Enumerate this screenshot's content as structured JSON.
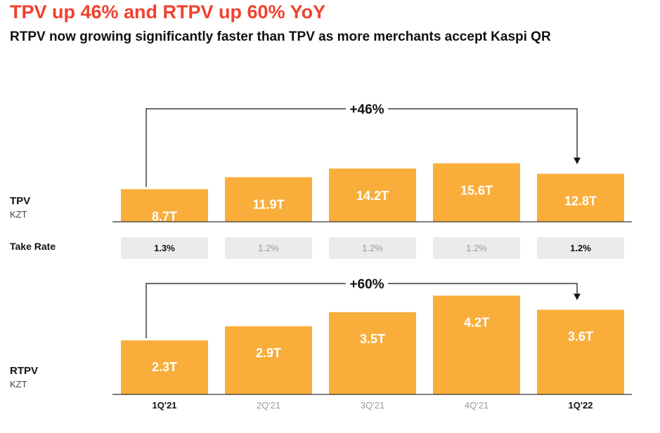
{
  "title": "TPV up 46% and RTPV up 60% YoY",
  "subtitle": "RTPV now growing significantly faster than TPV as more merchants accept Kaspi QR",
  "colors": {
    "title": "#f0412e",
    "bar": "#f9ae3b",
    "takerate_box": "#ebebeb",
    "highlight_text": "#111111",
    "muted_text": "#9a9a9a"
  },
  "tpv_row": {
    "label": "TPV",
    "unit": "KZT"
  },
  "rtpv_row": {
    "label": "RTPV",
    "unit": "KZT"
  },
  "take_rate_label": "Take Rate",
  "chart_data": [
    {
      "type": "bar",
      "categories": [
        "1Q'21",
        "2Q'21",
        "3Q'21",
        "4Q'21",
        "1Q'22"
      ],
      "values": [
        8.7,
        11.9,
        14.2,
        15.6,
        12.8
      ],
      "value_labels": [
        "8.7T",
        "11.9T",
        "14.2T",
        "15.6T",
        "12.8T"
      ],
      "ylabel": "TPV",
      "unit": "KZT",
      "annotation": "+46%",
      "annotation_from": "1Q'21",
      "annotation_to": "1Q'22"
    },
    {
      "type": "table",
      "label": "Take Rate",
      "categories": [
        "1Q'21",
        "2Q'21",
        "3Q'21",
        "4Q'21",
        "1Q'22"
      ],
      "values": [
        "1.3%",
        "1.2%",
        "1.2%",
        "1.2%",
        "1.2%"
      ],
      "highlighted": [
        true,
        false,
        false,
        false,
        true
      ]
    },
    {
      "type": "bar",
      "categories": [
        "1Q'21",
        "2Q'21",
        "3Q'21",
        "4Q'21",
        "1Q'22"
      ],
      "values": [
        2.3,
        2.9,
        3.5,
        4.2,
        3.6
      ],
      "value_labels": [
        "2.3T",
        "2.9T",
        "3.5T",
        "4.2T",
        "3.6T"
      ],
      "ylabel": "RTPV",
      "unit": "KZT",
      "annotation": "+60%",
      "annotation_from": "1Q'21",
      "annotation_to": "1Q'22",
      "highlighted_categories": [
        true,
        false,
        false,
        false,
        true
      ]
    }
  ]
}
